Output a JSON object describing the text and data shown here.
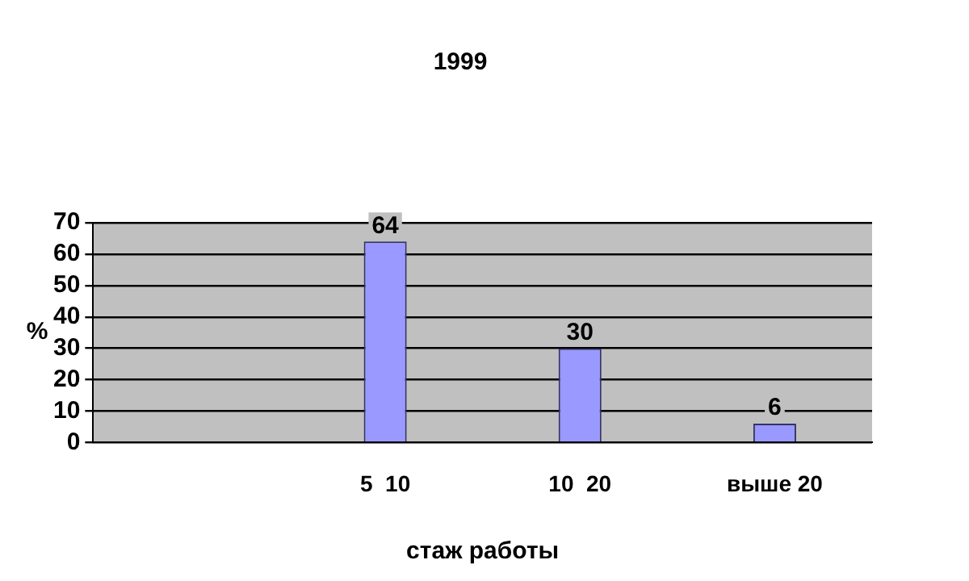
{
  "chart_data": {
    "type": "bar",
    "title": "1999",
    "xlabel": "стаж работы",
    "ylabel": "%",
    "categories": [
      null,
      "5  10",
      "10  20",
      "выше 20"
    ],
    "values": [
      null,
      64,
      30,
      6
    ],
    "color": "#9999ff",
    "ylim": [
      0,
      70
    ],
    "yticks": [
      0,
      10,
      20,
      30,
      40,
      50,
      60,
      70
    ],
    "grid": "y",
    "data_labels": true
  }
}
